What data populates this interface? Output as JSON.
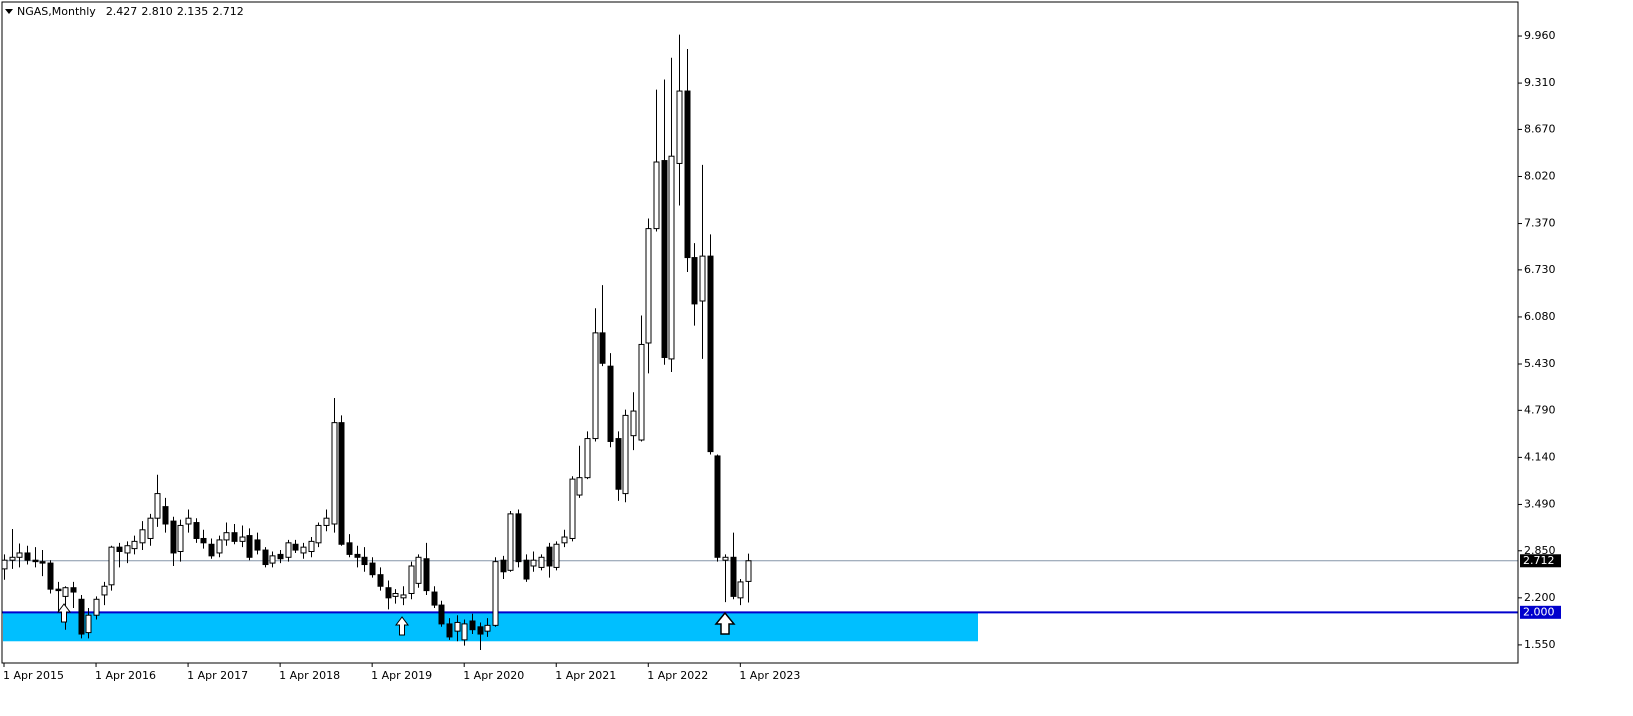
{
  "chart_data": {
    "type": "candlestick",
    "symbol": "NGAS,Monthly",
    "header_values": [
      "2.427",
      "2.810",
      "2.135",
      "2.712"
    ],
    "categories": [
      "1 Apr 2015",
      null,
      null,
      null,
      null,
      null,
      null,
      null,
      null,
      null,
      null,
      null,
      "1 Apr 2016",
      null,
      null,
      null,
      null,
      null,
      null,
      null,
      null,
      null,
      null,
      null,
      "1 Apr 2017",
      null,
      null,
      null,
      null,
      null,
      null,
      null,
      null,
      null,
      null,
      null,
      "1 Apr 2018",
      null,
      null,
      null,
      null,
      null,
      null,
      null,
      null,
      null,
      null,
      null,
      "1 Apr 2019",
      null,
      null,
      null,
      null,
      null,
      null,
      null,
      null,
      null,
      null,
      null,
      "1 Apr 2020",
      null,
      null,
      null,
      null,
      null,
      null,
      null,
      null,
      null,
      null,
      null,
      "1 Apr 2021",
      null,
      null,
      null,
      null,
      null,
      null,
      null,
      null,
      null,
      null,
      null,
      "1 Apr 2022",
      null,
      null,
      null,
      null,
      null,
      null,
      null,
      null,
      null,
      null,
      null,
      "1 Apr 2023",
      null
    ],
    "open": [
      2.6,
      2.72,
      2.76,
      2.82,
      2.72,
      2.7,
      2.68,
      2.32,
      2.22,
      2.34,
      2.18,
      1.72,
      1.96,
      2.24,
      2.38,
      2.9,
      2.82,
      2.88,
      2.96,
      3.02,
      3.3,
      3.46,
      3.26,
      2.84,
      3.22,
      3.24,
      3.02,
      2.94,
      2.82,
      3.0,
      3.1,
      2.98,
      3.06,
      3.0,
      2.86,
      2.68,
      2.8,
      2.76,
      2.94,
      2.82,
      2.84,
      2.96,
      3.2,
      3.22,
      4.62,
      2.96,
      2.8,
      2.76,
      2.68,
      2.52,
      2.34,
      2.22,
      2.2,
      2.26,
      2.4,
      2.74,
      2.28,
      2.1,
      1.84,
      1.74,
      1.62,
      1.88,
      1.8,
      1.74,
      1.82,
      2.72,
      2.58,
      3.36,
      2.72,
      2.64,
      2.62,
      2.9,
      2.62,
      2.96,
      3.02,
      3.62,
      3.86,
      4.4,
      5.86,
      5.4,
      4.4,
      3.64,
      4.44,
      4.38,
      5.72,
      7.3,
      8.24,
      5.5,
      8.2,
      9.2,
      6.9,
      6.3,
      6.92,
      4.16,
      2.72,
      2.76,
      2.2,
      2.427
    ],
    "high": [
      2.8,
      3.15,
      2.95,
      2.92,
      2.9,
      2.86,
      2.72,
      2.42,
      2.36,
      2.42,
      2.24,
      2.06,
      2.22,
      2.42,
      2.92,
      2.96,
      2.98,
      3.06,
      3.26,
      3.36,
      3.9,
      3.58,
      3.32,
      3.28,
      3.42,
      3.3,
      3.14,
      3.02,
      3.06,
      3.24,
      3.22,
      3.2,
      3.16,
      3.1,
      2.9,
      2.84,
      2.86,
      3.0,
      3.0,
      2.96,
      3.04,
      3.24,
      3.42,
      4.96,
      4.72,
      3.08,
      2.92,
      2.9,
      2.76,
      2.62,
      2.44,
      2.32,
      2.36,
      2.7,
      2.8,
      2.96,
      2.36,
      2.16,
      1.92,
      1.96,
      1.9,
      1.98,
      1.86,
      1.92,
      2.76,
      2.78,
      3.4,
      3.42,
      2.8,
      2.84,
      2.8,
      2.96,
      2.98,
      3.14,
      3.88,
      4.3,
      4.5,
      6.2,
      6.52,
      5.58,
      4.5,
      4.8,
      5.04,
      6.1,
      7.44,
      9.22,
      9.36,
      9.66,
      9.98,
      9.78,
      7.1,
      8.18,
      7.22,
      4.18,
      2.8,
      3.1,
      2.46,
      2.81
    ],
    "low": [
      2.45,
      2.6,
      2.62,
      2.66,
      2.62,
      2.5,
      2.26,
      2.02,
      1.76,
      2.06,
      1.64,
      1.64,
      1.9,
      2.1,
      2.3,
      2.62,
      2.68,
      2.8,
      2.86,
      2.92,
      3.18,
      3.1,
      2.64,
      2.7,
      3.1,
      2.96,
      2.88,
      2.74,
      2.76,
      2.92,
      2.94,
      2.9,
      2.72,
      2.8,
      2.62,
      2.62,
      2.68,
      2.7,
      2.82,
      2.74,
      2.76,
      2.9,
      3.12,
      3.1,
      2.92,
      2.76,
      2.62,
      2.56,
      2.48,
      2.3,
      2.04,
      2.12,
      2.1,
      2.18,
      2.34,
      2.24,
      2.06,
      1.8,
      1.62,
      1.6,
      1.54,
      1.7,
      1.48,
      1.66,
      1.8,
      2.46,
      2.56,
      2.62,
      2.42,
      2.56,
      2.58,
      2.48,
      2.58,
      2.9,
      2.98,
      3.58,
      3.84,
      4.36,
      5.4,
      4.28,
      3.54,
      3.52,
      4.24,
      4.36,
      5.3,
      7.26,
      5.42,
      5.32,
      7.62,
      6.7,
      5.96,
      5.5,
      4.18,
      2.7,
      2.14,
      2.18,
      2.1,
      2.135
    ],
    "close": [
      2.72,
      2.76,
      2.82,
      2.72,
      2.7,
      2.68,
      2.32,
      2.3,
      2.34,
      2.28,
      1.7,
      1.96,
      2.18,
      2.36,
      2.9,
      2.84,
      2.92,
      2.98,
      3.14,
      3.3,
      3.64,
      3.22,
      2.82,
      3.2,
      3.3,
      3.02,
      2.96,
      2.78,
      3.0,
      3.1,
      2.98,
      3.04,
      2.76,
      2.86,
      2.66,
      2.78,
      2.74,
      2.96,
      2.86,
      2.9,
      2.98,
      3.2,
      3.3,
      4.62,
      2.94,
      2.8,
      2.76,
      2.66,
      2.52,
      2.36,
      2.2,
      2.26,
      2.24,
      2.64,
      2.76,
      2.3,
      2.1,
      1.84,
      1.66,
      1.86,
      1.84,
      1.76,
      1.7,
      1.82,
      2.7,
      2.56,
      3.36,
      2.7,
      2.46,
      2.72,
      2.76,
      2.64,
      2.94,
      3.04,
      3.84,
      3.86,
      4.4,
      5.86,
      5.44,
      4.36,
      3.7,
      4.72,
      4.78,
      5.7,
      7.3,
      8.22,
      5.52,
      8.3,
      9.2,
      6.9,
      6.26,
      6.92,
      4.22,
      2.76,
      2.76,
      2.22,
      2.42,
      2.712
    ],
    "up_color": "#ffffff",
    "down_color": "#000000",
    "ylim": [
      1.3,
      10.43
    ],
    "yticks": [
      {
        "value": 9.96,
        "label": "9.960"
      },
      {
        "value": 9.31,
        "label": "9.310"
      },
      {
        "value": 8.67,
        "label": "8.670"
      },
      {
        "value": 8.02,
        "label": "8.020"
      },
      {
        "value": 7.37,
        "label": "7.370"
      },
      {
        "value": 6.73,
        "label": "6.730"
      },
      {
        "value": 6.08,
        "label": "6.080"
      },
      {
        "value": 5.43,
        "label": "5.430"
      },
      {
        "value": 4.79,
        "label": "4.790"
      },
      {
        "value": 4.14,
        "label": "4.140"
      },
      {
        "value": 3.49,
        "label": "3.490"
      },
      {
        "value": 2.85,
        "label": "2.850"
      },
      {
        "value": 2.2,
        "label": "2.200"
      },
      {
        "value": 1.55,
        "label": "1.550"
      }
    ],
    "price_line": {
      "value": 2.712,
      "label": "2.712",
      "color": "#8696a9"
    },
    "level": {
      "value": 2,
      "label": "2.000",
      "color": "#0000cd"
    },
    "zone": {
      "low": 1.6,
      "high": 2.0,
      "color": "#00bfff"
    }
  }
}
